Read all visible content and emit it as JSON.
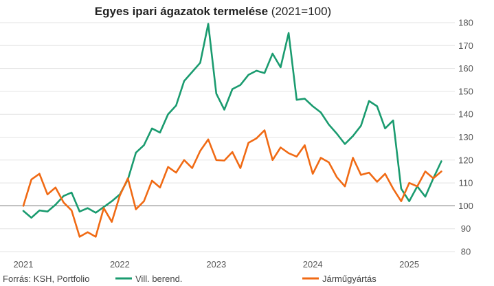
{
  "chart_data": {
    "type": "line",
    "title_bold": "Egyes ipari ágazatok  termelése",
    "title_rest": " (2021=100)",
    "source": "Forrás: KSH, Portfolio",
    "ylim": [
      80,
      180
    ],
    "yticks": [
      80,
      90,
      100,
      110,
      120,
      130,
      140,
      150,
      160,
      170,
      180
    ],
    "xtick_labels": [
      "2021",
      "2022",
      "2023",
      "2024",
      "2025"
    ],
    "x_start": "2021-01",
    "x_end": "2025-04",
    "reference_line": 100,
    "legend_position": "bottom",
    "grid": "horizontal",
    "series": [
      {
        "name": "Vill. berend.",
        "color": "#1a9b6f",
        "values": [
          97.8,
          94.8,
          98.0,
          97.5,
          100.5,
          104.3,
          105.8,
          97.5,
          99.0,
          97.0,
          99.5,
          102.0,
          105.0,
          111.5,
          123.2,
          126.5,
          133.8,
          132.0,
          140.0,
          143.8,
          154.5,
          158.5,
          162.5,
          179.5,
          149.0,
          142.0,
          151.0,
          152.8,
          157.2,
          159.0,
          158.0,
          166.5,
          160.5,
          175.5,
          146.3,
          146.8,
          143.5,
          140.8,
          135.5,
          131.5,
          127.0,
          130.5,
          135.0,
          145.8,
          143.5,
          133.8,
          137.3,
          107.5,
          102.0,
          108.5,
          104.0,
          112.0,
          119.5
        ]
      },
      {
        "name": "Járműgyártás",
        "color": "#f06a14",
        "values": [
          100.0,
          111.5,
          114.0,
          105.0,
          108.0,
          101.5,
          98.0,
          86.5,
          88.5,
          86.5,
          99.0,
          93.0,
          104.5,
          112.0,
          98.5,
          102.0,
          111.0,
          108.0,
          117.0,
          114.5,
          120.0,
          116.5,
          124.0,
          129.0,
          120.0,
          119.8,
          123.5,
          116.5,
          127.5,
          129.5,
          133.0,
          120.0,
          125.5,
          123.0,
          121.5,
          126.5,
          114.0,
          121.0,
          119.0,
          112.5,
          108.5,
          121.0,
          113.5,
          114.5,
          110.5,
          114.0,
          107.5,
          102.0,
          110.0,
          108.5,
          115.0,
          112.0,
          115.0
        ]
      }
    ]
  }
}
